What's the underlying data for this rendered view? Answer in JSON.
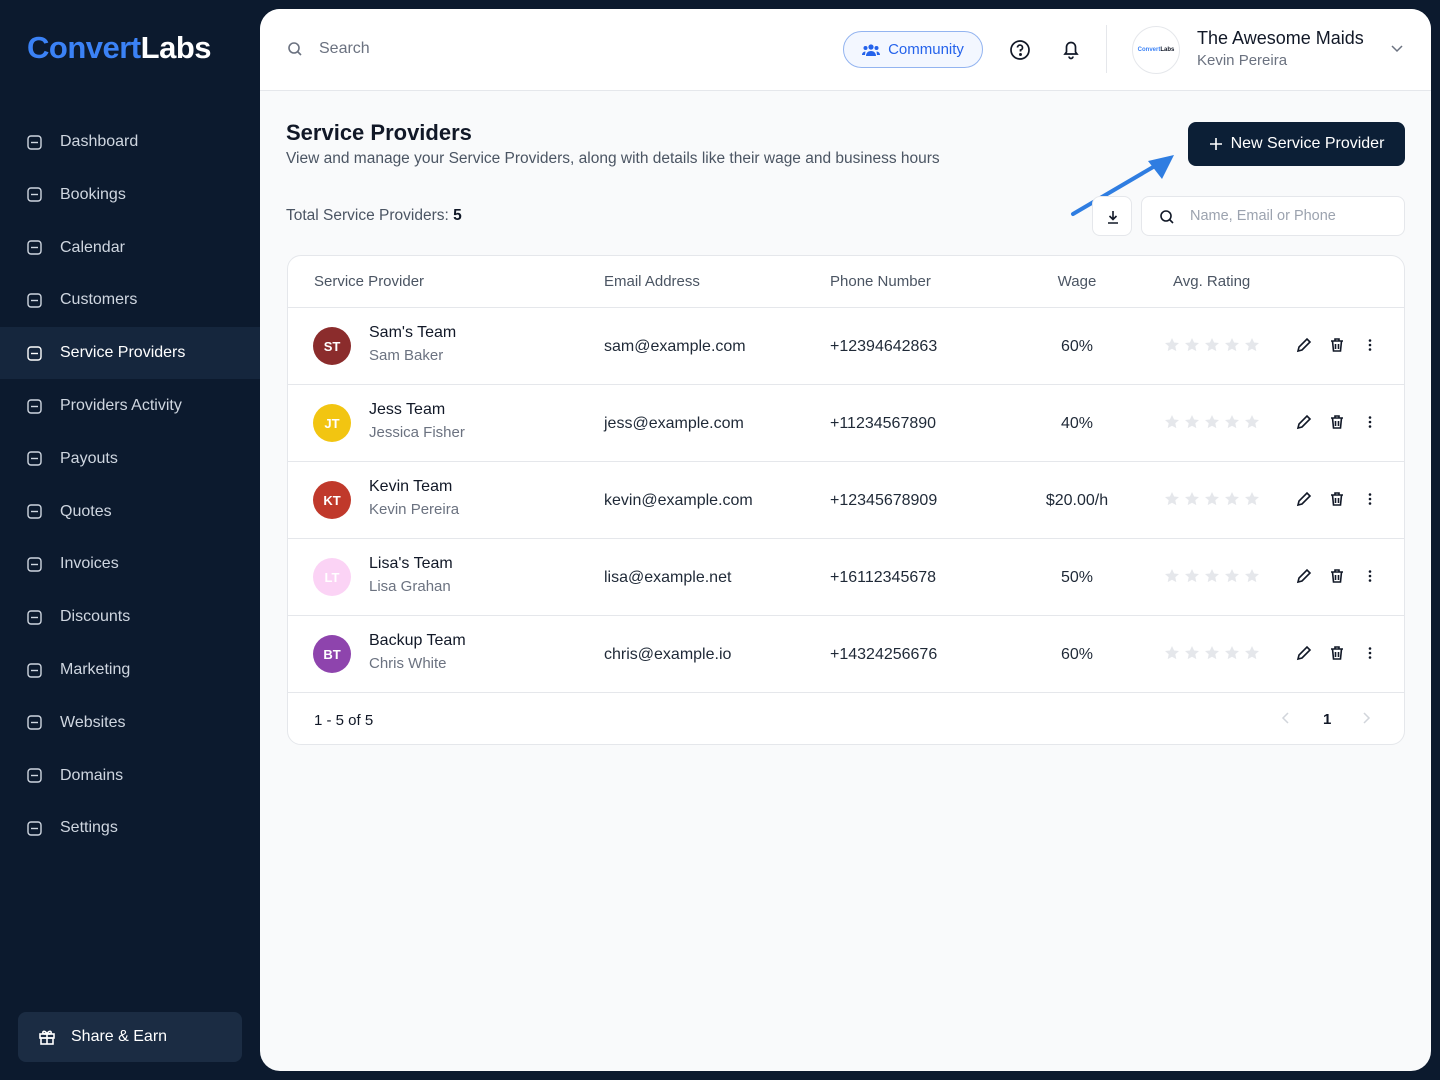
{
  "brand": {
    "part1": "Convert",
    "part2": "Labs"
  },
  "nav": [
    "Dashboard",
    "Bookings",
    "Calendar",
    "Customers",
    "Service Providers",
    "Providers Activity",
    "Payouts",
    "Quotes",
    "Invoices",
    "Discounts",
    "Marketing",
    "Websites",
    "Domains",
    "Settings"
  ],
  "share": "Share & Earn",
  "header": {
    "search": "Search",
    "community": "Community",
    "account": "The Awesome Maids",
    "user": "Kevin Pereira"
  },
  "page": {
    "title": "Service Providers",
    "subtitle": "View and manage your Service Providers, along with details like their wage and business hours",
    "new_button": "New Service Provider",
    "total_label": "Total Service Providers:",
    "total": 5,
    "filter_placeholder": "Name, Email or Phone"
  },
  "table": {
    "columns": [
      "Service Provider",
      "Email Address",
      "Phone Number",
      "Wage",
      "Avg. Rating"
    ],
    "rows": [
      {
        "initials": "ST",
        "color": "#8b2c2c",
        "team": "Sam's Team",
        "name": "Sam Baker",
        "email": "sam@example.com",
        "phone": "+12394642863",
        "wage": "60%"
      },
      {
        "initials": "JT",
        "color": "#f2c511",
        "team": "Jess Team",
        "name": "Jessica Fisher",
        "email": "jess@example.com",
        "phone": "+11234567890",
        "wage": "40%"
      },
      {
        "initials": "KT",
        "color": "#c0392b",
        "team": "Kevin Team",
        "name": "Kevin Pereira",
        "email": "kevin@example.com",
        "phone": "+12345678909",
        "wage": "$20.00/h"
      },
      {
        "initials": "LT",
        "color": "#fbd3f5",
        "team": "Lisa's Team",
        "name": "Lisa Grahan",
        "email": "lisa@example.net",
        "phone": "+16112345678",
        "wage": "50%"
      },
      {
        "initials": "BT",
        "color": "#8e44ad",
        "team": "Backup Team",
        "name": "Chris White",
        "email": "chris@example.io",
        "phone": "+14324256676",
        "wage": "60%"
      }
    ],
    "range": "1 - 5 of 5",
    "page": "1"
  }
}
